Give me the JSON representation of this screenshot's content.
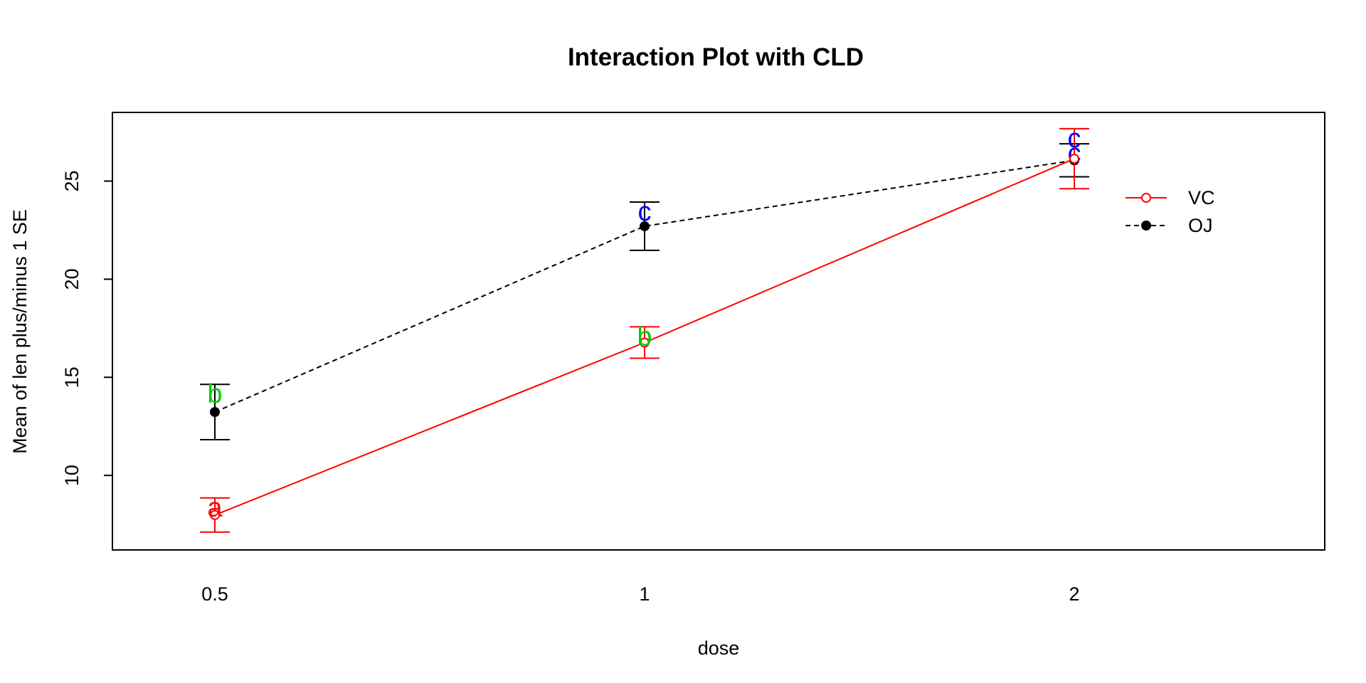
{
  "chart_data": {
    "type": "line",
    "title": "Interaction Plot with CLD",
    "xlabel": "dose",
    "ylabel": "Mean of  len plus/minus 1 SE",
    "categories": [
      "0.5",
      "1",
      "2"
    ],
    "ylim": [
      6.2,
      28.5
    ],
    "yticks": [
      10,
      15,
      20,
      25
    ],
    "grid": false,
    "legend_position": "top-right",
    "series": [
      {
        "name": "VC",
        "color": "#ff0000",
        "line_style": "solid",
        "marker": "open-circle",
        "values": [
          7.98,
          16.77,
          26.14
        ],
        "se_low": [
          7.11,
          15.97,
          24.61
        ],
        "se_high": [
          8.85,
          17.57,
          27.67
        ],
        "cld": [
          "a",
          "b",
          "c"
        ],
        "cld_colors": [
          "#ff0000",
          "#00cd00",
          "#0000ff"
        ]
      },
      {
        "name": "OJ",
        "color": "#000000",
        "line_style": "dashed",
        "marker": "filled-circle",
        "values": [
          13.23,
          22.7,
          26.06
        ],
        "se_low": [
          11.82,
          21.47,
          25.22
        ],
        "se_high": [
          14.64,
          23.93,
          26.9
        ],
        "cld": [
          "b",
          "c",
          "c"
        ],
        "cld_colors": [
          "#00cd00",
          "#0000ff",
          "#0000ff"
        ]
      }
    ]
  }
}
